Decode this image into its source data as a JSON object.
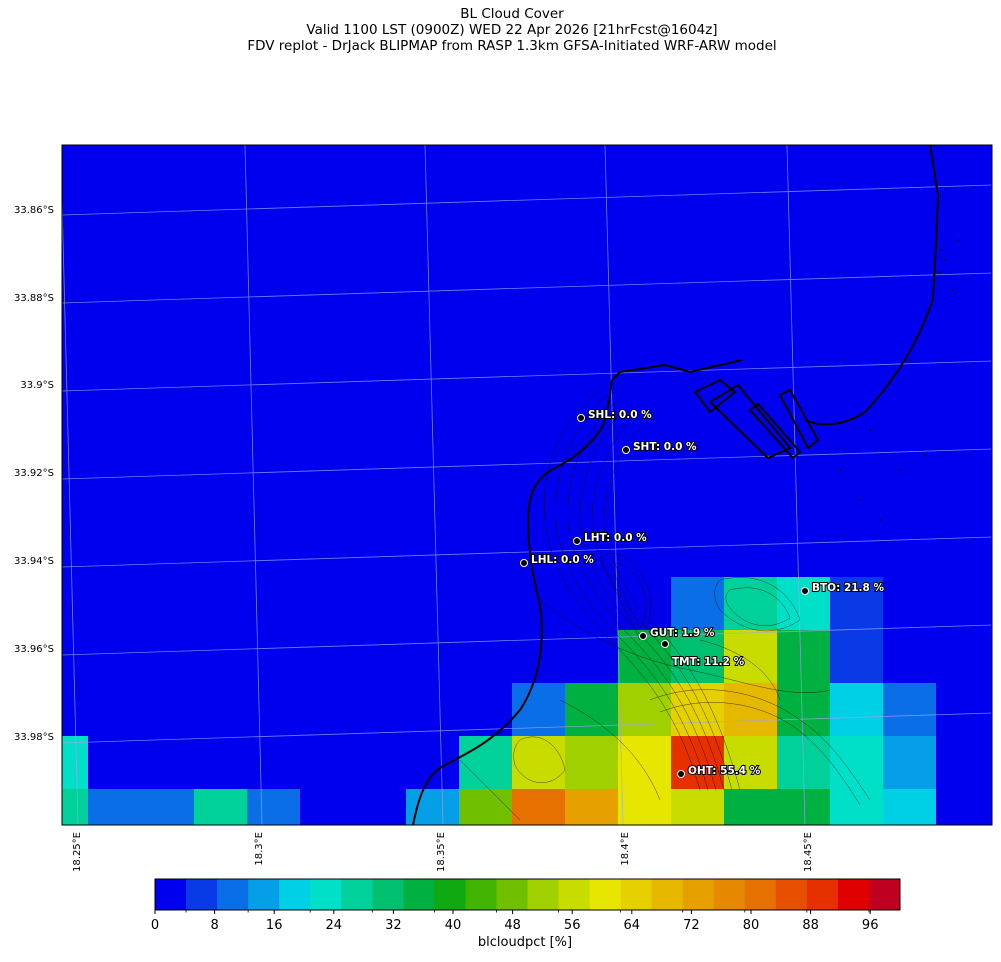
{
  "title": {
    "line1": "BL Cloud Cover",
    "line2": "Valid 1100 LST (0900Z) WED 22 Apr 2026 [21hrFcst@1604z]",
    "line3": "FDV replot - DrJack BLIPMAP from RASP 1.3km GFSA-Initiated WRF-ARW model"
  },
  "axes": {
    "y_labels": [
      "33.86°S",
      "33.88°S",
      "33.9°S",
      "33.92°S",
      "33.94°S",
      "33.96°S",
      "33.98°S"
    ],
    "x_labels": [
      "18.25°E",
      "18.3°E",
      "18.35°E",
      "18.4°E",
      "18.45°E"
    ]
  },
  "stations": [
    {
      "code": "SHL",
      "value": "0.0 %",
      "label": "SHL: 0.0 %"
    },
    {
      "code": "SHT",
      "value": "0.0 %",
      "label": "SHT: 0.0 %"
    },
    {
      "code": "LHT",
      "value": "0.0 %",
      "label": "LHT: 0.0 %"
    },
    {
      "code": "LHL",
      "value": "0.0 %",
      "label": "LHL: 0.0 %"
    },
    {
      "code": "BTO",
      "value": "21.8 %",
      "label": "BTO: 21.8 %"
    },
    {
      "code": "GUT",
      "value": "1.9 %",
      "label": "GUT: 1.9 %"
    },
    {
      "code": "TMT",
      "value": "11.2 %",
      "label": "TMT: 11.2 %"
    },
    {
      "code": "OHT",
      "value": "55.4 %",
      "label": "OHT: 55.4 %"
    }
  ],
  "colorbar": {
    "label": "blcloudpct [%]",
    "ticks": [
      "0",
      "8",
      "16",
      "24",
      "32",
      "40",
      "48",
      "56",
      "64",
      "72",
      "80",
      "88",
      "96"
    ],
    "min": 0,
    "max": 100,
    "colors": [
      "#0000ee",
      "#0a3ae6",
      "#0a6ee6",
      "#049fe6",
      "#00d0e6",
      "#00e0c8",
      "#00d09a",
      "#00c070",
      "#00b040",
      "#10a810",
      "#40b400",
      "#70c000",
      "#a0d000",
      "#c8dc00",
      "#e6e600",
      "#e6d000",
      "#e6b800",
      "#e6a000",
      "#e68800",
      "#e67000",
      "#e65000",
      "#e63000",
      "#e00000",
      "#c00020"
    ]
  },
  "cloud_cells": [
    {
      "row": 0,
      "col": 12,
      "value": 10
    },
    {
      "row": 0,
      "col": 13,
      "value": 25
    },
    {
      "row": 0,
      "col": 14,
      "value": 22
    },
    {
      "row": 0,
      "col": 15,
      "value": 6
    },
    {
      "row": 1,
      "col": 11,
      "value": 35
    },
    {
      "row": 1,
      "col": 12,
      "value": 32
    },
    {
      "row": 1,
      "col": 13,
      "value": 58
    },
    {
      "row": 1,
      "col": 14,
      "value": 36
    },
    {
      "row": 1,
      "col": 15,
      "value": 7
    },
    {
      "row": 2,
      "col": 9,
      "value": 10
    },
    {
      "row": 2,
      "col": 10,
      "value": 35
    },
    {
      "row": 2,
      "col": 11,
      "value": 50
    },
    {
      "row": 2,
      "col": 12,
      "value": 66
    },
    {
      "row": 2,
      "col": 13,
      "value": 68
    },
    {
      "row": 2,
      "col": 14,
      "value": 34
    },
    {
      "row": 2,
      "col": 15,
      "value": 18
    },
    {
      "row": 2,
      "col": 16,
      "value": 10
    },
    {
      "row": 3,
      "col": 0,
      "value": 22
    },
    {
      "row": 3,
      "col": 2,
      "value": 4
    },
    {
      "row": 3,
      "col": 3,
      "value": 4
    },
    {
      "row": 3,
      "col": 8,
      "value": 26
    },
    {
      "row": 3,
      "col": 9,
      "value": 56
    },
    {
      "row": 3,
      "col": 10,
      "value": 50
    },
    {
      "row": 3,
      "col": 11,
      "value": 60
    },
    {
      "row": 3,
      "col": 12,
      "value": 90
    },
    {
      "row": 3,
      "col": 13,
      "value": 58
    },
    {
      "row": 3,
      "col": 14,
      "value": 28
    },
    {
      "row": 3,
      "col": 15,
      "value": 22
    },
    {
      "row": 3,
      "col": 16,
      "value": 14
    },
    {
      "row": 4,
      "col": 0,
      "value": 26
    },
    {
      "row": 4,
      "col": 1,
      "value": 10
    },
    {
      "row": 4,
      "col": 2,
      "value": 10
    },
    {
      "row": 4,
      "col": 3,
      "value": 26
    },
    {
      "row": 4,
      "col": 4,
      "value": 10
    },
    {
      "row": 4,
      "col": 7,
      "value": 14
    },
    {
      "row": 4,
      "col": 8,
      "value": 46
    },
    {
      "row": 4,
      "col": 9,
      "value": 82
    },
    {
      "row": 4,
      "col": 10,
      "value": 74
    },
    {
      "row": 4,
      "col": 11,
      "value": 62
    },
    {
      "row": 4,
      "col": 12,
      "value": 58
    },
    {
      "row": 4,
      "col": 13,
      "value": 34
    },
    {
      "row": 4,
      "col": 14,
      "value": 34
    },
    {
      "row": 4,
      "col": 15,
      "value": 22
    },
    {
      "row": 4,
      "col": 16,
      "value": 18
    }
  ]
}
